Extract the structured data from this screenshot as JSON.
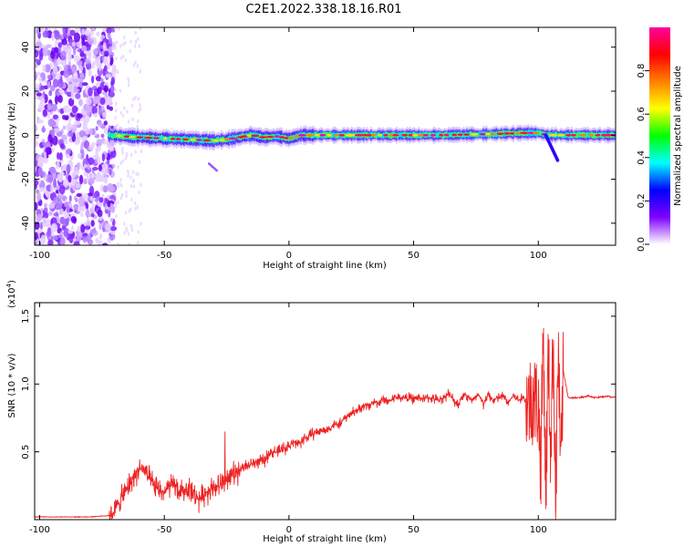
{
  "title": "C2E1.2022.338.18.16.R01",
  "chart_data": [
    {
      "type": "heatmap",
      "subtype": "spectrogram",
      "title": "",
      "xlabel": "Height of straight line (km)",
      "ylabel": "Frequency (Hz)",
      "xlim": [
        -102,
        131
      ],
      "ylim": [
        -50,
        49
      ],
      "x_ticks": [
        -100,
        -50,
        0,
        50,
        100
      ],
      "x_tick_labels": [
        "-100",
        "-50",
        "0",
        "50",
        "100"
      ],
      "y_ticks": [
        40,
        20,
        0,
        -20,
        -40
      ],
      "y_tick_labels": [
        "40",
        "20",
        "0",
        "-20",
        "-40"
      ],
      "noise_band_x": [
        -102,
        -70
      ],
      "ridge": {
        "x": [
          -72,
          -60,
          -50,
          -40,
          -30,
          -25,
          -20,
          -15,
          -10,
          -5,
          0,
          5,
          10,
          20,
          40,
          60,
          80,
          95,
          100,
          104,
          108,
          131
        ],
        "freq_hz": [
          0,
          -1,
          -1.5,
          -2,
          -2.5,
          -2,
          -1,
          0,
          -1,
          -0.5,
          -1.5,
          0,
          0,
          0,
          0,
          0,
          0.5,
          1,
          1,
          0,
          0,
          0
        ]
      },
      "colorbar": {
        "label": "Normalized spectral amplitude",
        "range": [
          0,
          1
        ],
        "ticks": [
          0.0,
          0.2,
          0.4,
          0.6,
          0.8
        ],
        "tick_labels": [
          "0.0",
          "0.2",
          "0.4",
          "0.6",
          "0.8"
        ],
        "colors": [
          "#ffffff",
          "#7f00ff",
          "#0000ff",
          "#00ffff",
          "#00ff00",
          "#ffff00",
          "#ff8000",
          "#ff0000",
          "#ff00a0"
        ]
      }
    },
    {
      "type": "line",
      "title": "",
      "xlabel": "Height of straight line (km)",
      "ylabel": "SNR (10 * v/v)",
      "y_scale_label": "(x10",
      "y_scale_exp": "4",
      "y_scale_close": ")",
      "xlim": [
        -102,
        131
      ],
      "ylim": [
        0,
        1.6
      ],
      "x_ticks": [
        -100,
        -50,
        0,
        50,
        100
      ],
      "x_tick_labels": [
        "-100",
        "-50",
        "0",
        "50",
        "100"
      ],
      "y_ticks": [
        0.5,
        1.0,
        1.5
      ],
      "y_tick_labels": [
        "0.5",
        "1.0",
        "1.5"
      ],
      "series": [
        {
          "name": "SNR",
          "color": "#ee2222",
          "x": [
            -102,
            -90,
            -80,
            -72,
            -70,
            -68,
            -66,
            -64,
            -62,
            -60,
            -58,
            -56,
            -54,
            -52,
            -50,
            -48,
            -46,
            -44,
            -42,
            -40,
            -38,
            -36,
            -34,
            -32,
            -30,
            -28,
            -26,
            -24,
            -22,
            -20,
            -18,
            -16,
            -14,
            -12,
            -10,
            -8,
            -6,
            -4,
            -2,
            0,
            2,
            4,
            6,
            8,
            10,
            12,
            14,
            16,
            18,
            20,
            22,
            24,
            26,
            28,
            30,
            32,
            34,
            36,
            38,
            40,
            42,
            44,
            46,
            48,
            50,
            52,
            54,
            56,
            58,
            60,
            62,
            64,
            66,
            68,
            70,
            72,
            74,
            76,
            78,
            80,
            82,
            84,
            86,
            88,
            90,
            92,
            94,
            96,
            98,
            100,
            101,
            102,
            103,
            104,
            105,
            106,
            107,
            108,
            109,
            110,
            112,
            116,
            120,
            124,
            128,
            131
          ],
          "y": [
            0.02,
            0.02,
            0.02,
            0.03,
            0.06,
            0.14,
            0.19,
            0.26,
            0.32,
            0.38,
            0.36,
            0.3,
            0.24,
            0.22,
            0.2,
            0.24,
            0.26,
            0.2,
            0.21,
            0.24,
            0.18,
            0.15,
            0.19,
            0.22,
            0.25,
            0.24,
            0.3,
            0.31,
            0.34,
            0.36,
            0.4,
            0.4,
            0.42,
            0.43,
            0.43,
            0.49,
            0.5,
            0.5,
            0.53,
            0.54,
            0.57,
            0.56,
            0.6,
            0.61,
            0.64,
            0.65,
            0.66,
            0.67,
            0.7,
            0.7,
            0.74,
            0.77,
            0.8,
            0.81,
            0.84,
            0.84,
            0.87,
            0.86,
            0.89,
            0.87,
            0.9,
            0.9,
            0.9,
            0.9,
            0.89,
            0.9,
            0.89,
            0.9,
            0.89,
            0.88,
            0.9,
            0.93,
            0.88,
            0.85,
            0.93,
            0.9,
            0.88,
            0.92,
            0.85,
            0.92,
            0.88,
            0.9,
            0.91,
            0.86,
            0.92,
            0.88,
            0.9,
            0.86,
            0.9,
            0.85,
            0.4,
            1.4,
            0.2,
            1.2,
            0.5,
            1.35,
            0.15,
            1.3,
            0.3,
            1.1,
            0.9,
            0.9,
            0.91,
            0.9,
            0.91,
            0.9
          ]
        }
      ]
    }
  ]
}
